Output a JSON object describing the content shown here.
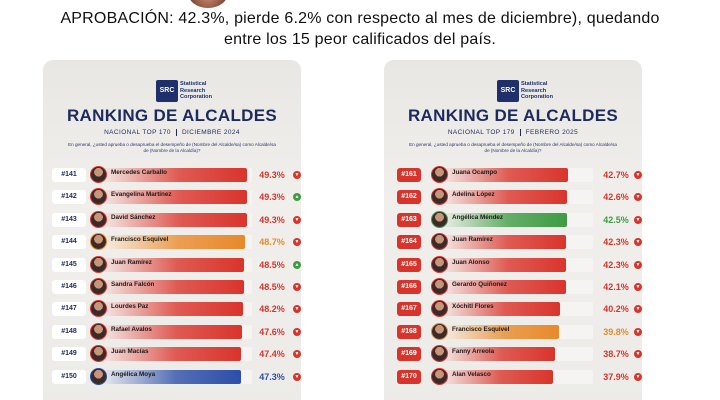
{
  "headline": {
    "line1": "APROBACIÓN: 42.3%, pierde 6.2% con respecto al mes de diciembre), quedando",
    "line2": "entre los 15 peor calificados del país."
  },
  "cards": [
    {
      "logo_abbr": "SRC",
      "logo_text": "Statistical Research Corporation",
      "title": "RANKING DE ALCALDES",
      "subtitle_left": "NACIONAL TOP 170",
      "subtitle_right": "DICIEMBRE 2024",
      "question": "En general, ¿usted aprueba o desaprueba el desempeño de (Nombre del Alcalde/sa) como Alcalde/sa de (Nombre de la Alcaldía)?",
      "rows": [
        {
          "rank": "#141",
          "name": "Mercedes Carballo",
          "pct": "49.3%",
          "value": 49.3,
          "color": "#d9342b",
          "trend": "down"
        },
        {
          "rank": "#142",
          "name": "Evangelina Martínez",
          "pct": "49.3%",
          "value": 49.3,
          "color": "#d9342b",
          "trend": "up"
        },
        {
          "rank": "#143",
          "name": "David Sánchez",
          "pct": "49.3%",
          "value": 49.3,
          "color": "#d9342b",
          "trend": "down"
        },
        {
          "rank": "#144",
          "name": "Francisco Esquivel",
          "pct": "48.7%",
          "value": 48.7,
          "color": "#e8892b",
          "trend": "down"
        },
        {
          "rank": "#145",
          "name": "Juan Ramírez",
          "pct": "48.5%",
          "value": 48.5,
          "color": "#d9342b",
          "trend": "up"
        },
        {
          "rank": "#146",
          "name": "Sandra Falcón",
          "pct": "48.5%",
          "value": 48.5,
          "color": "#d9342b",
          "trend": "down"
        },
        {
          "rank": "#147",
          "name": "Lourdes Paz",
          "pct": "48.2%",
          "value": 48.2,
          "color": "#d9342b",
          "trend": "down"
        },
        {
          "rank": "#148",
          "name": "Rafael Avalos",
          "pct": "47.6%",
          "value": 47.6,
          "color": "#d9342b",
          "trend": "down"
        },
        {
          "rank": "#149",
          "name": "Juan Macías",
          "pct": "47.4%",
          "value": 47.4,
          "color": "#d9342b",
          "trend": "down"
        },
        {
          "rank": "#150",
          "name": "Angélica Moya",
          "pct": "47.3%",
          "value": 47.3,
          "color": "#2c4ea8",
          "trend": "down"
        }
      ]
    },
    {
      "logo_abbr": "SRC",
      "logo_text": "Statistical Research Corporation",
      "title": "RANKING DE ALCALDES",
      "subtitle_left": "NACIONAL TOP 179",
      "subtitle_right": "FEBRERO 2025",
      "question": "En general, ¿usted aprueba o desaprueba el desempeño de (Nombre del Alcalde/sa) como Alcalde/sa de (Nombre de la Alcaldía)?",
      "rows": [
        {
          "rank": "#161",
          "name": "Juana Ocampo",
          "pct": "42.7%",
          "value": 42.7,
          "color": "#d9342b",
          "trend": "down"
        },
        {
          "rank": "#162",
          "name": "Adelina López",
          "pct": "42.6%",
          "value": 42.6,
          "color": "#d9342b",
          "trend": "down"
        },
        {
          "rank": "#163",
          "name": "Angélica Méndez",
          "pct": "42.5%",
          "value": 42.5,
          "color": "#3f9c43",
          "trend": "down"
        },
        {
          "rank": "#164",
          "name": "Juan Ramírez",
          "pct": "42.3%",
          "value": 42.3,
          "color": "#d9342b",
          "trend": "down"
        },
        {
          "rank": "#165",
          "name": "Juan Alonso",
          "pct": "42.3%",
          "value": 42.3,
          "color": "#d9342b",
          "trend": "down"
        },
        {
          "rank": "#166",
          "name": "Gerardo Quiñonez",
          "pct": "42.1%",
          "value": 42.1,
          "color": "#d9342b",
          "trend": "down"
        },
        {
          "rank": "#167",
          "name": "Xóchitl Flores",
          "pct": "40.2%",
          "value": 40.2,
          "color": "#d9342b",
          "trend": "down"
        },
        {
          "rank": "#168",
          "name": "Francisco Esquivel",
          "pct": "39.8%",
          "value": 39.8,
          "color": "#e8892b",
          "trend": "down"
        },
        {
          "rank": "#169",
          "name": "Fanny Arreola",
          "pct": "38.7%",
          "value": 38.7,
          "color": "#d9342b",
          "trend": "down"
        },
        {
          "rank": "#170",
          "name": "Alan Velasco",
          "pct": "37.9%",
          "value": 37.9,
          "color": "#d9342b",
          "trend": "down"
        }
      ]
    }
  ]
}
